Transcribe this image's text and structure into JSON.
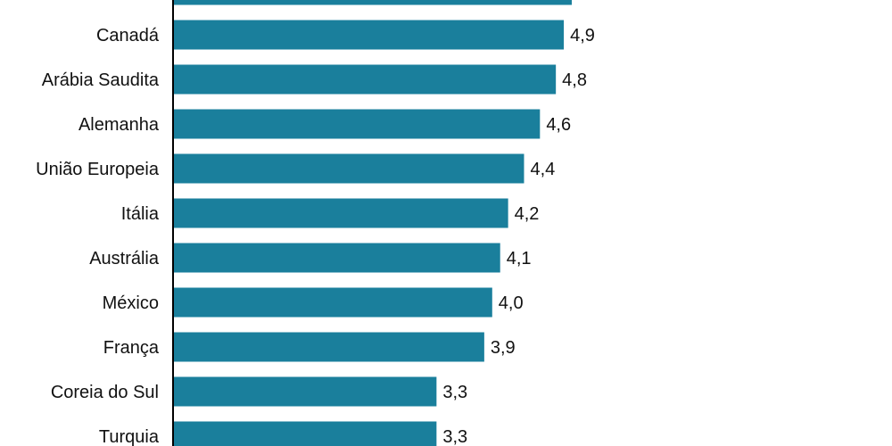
{
  "chart_data": {
    "type": "bar",
    "orientation": "horizontal",
    "categories": [
      "",
      "Canadá",
      "Arábia Saudita",
      "Alemanha",
      "União Europeia",
      "Itália",
      "Austrália",
      "México",
      "França",
      "Coreia do Sul",
      "Turquia"
    ],
    "values": [
      5.0,
      4.9,
      4.8,
      4.6,
      4.4,
      4.2,
      4.1,
      4.0,
      3.9,
      3.3,
      3.3
    ],
    "value_labels": [
      "",
      "4,9",
      "4,8",
      "4,6",
      "4,4",
      "4,2",
      "4,1",
      "4,0",
      "3,9",
      "3,3",
      "3,3"
    ],
    "bar_color": "#1a7f9c",
    "xlim": [
      0,
      5.2
    ],
    "grid": false
  }
}
